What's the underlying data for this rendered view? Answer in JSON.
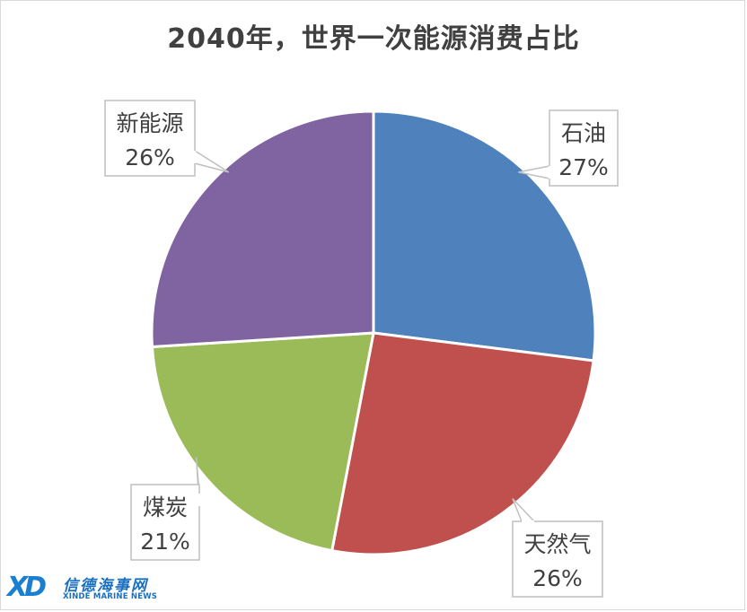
{
  "chart_data": {
    "type": "pie",
    "title": "2040年，世界一次能源消费占比",
    "slices": [
      {
        "label": "石油",
        "value": 27,
        "value_label": "27%",
        "color": "#4f81bd"
      },
      {
        "label": "天然气",
        "value": 26,
        "value_label": "26%",
        "color": "#c0504d"
      },
      {
        "label": "煤炭",
        "value": 21,
        "value_label": "21%",
        "color": "#9bbb59"
      },
      {
        "label": "新能源",
        "value": 26,
        "value_label": "26%",
        "color": "#8064a2"
      }
    ],
    "start_angle": "12 o'clock",
    "direction": "clockwise",
    "legend": "none",
    "data_labels": "callouts"
  },
  "watermark": {
    "mark": "XD",
    "name_cn": "信德海事网",
    "name_en": "XINDE MARINE NEWS"
  }
}
